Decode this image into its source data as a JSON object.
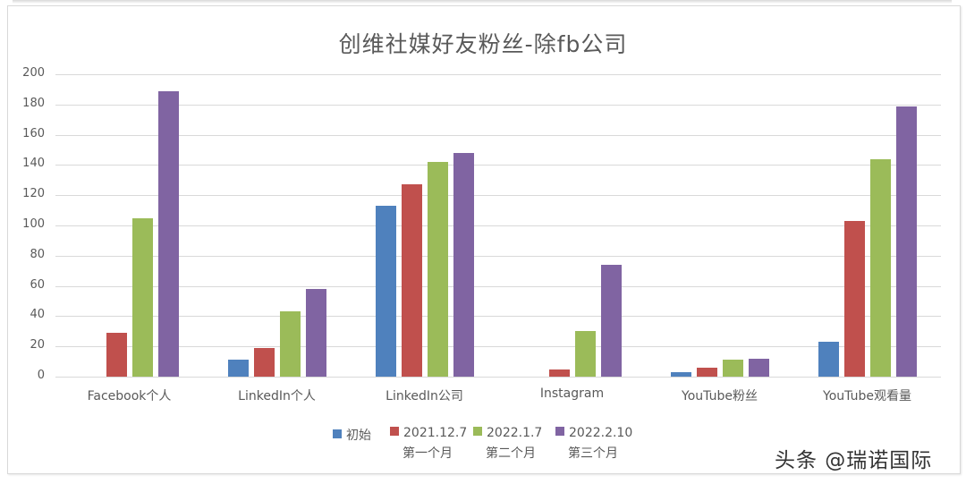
{
  "chart_data": {
    "type": "bar",
    "title": "创维社媒好友粉丝-除fb公司",
    "xlabel": "",
    "ylabel": "",
    "ylim": [
      0,
      200
    ],
    "yticks": [
      0,
      20,
      40,
      60,
      80,
      100,
      120,
      140,
      160,
      180,
      200
    ],
    "grid": true,
    "legend_position": "bottom",
    "categories": [
      "Facebook个人",
      "LinkedIn个人",
      "LinkedIn公司",
      "Instagram",
      "YouTube粉丝",
      "YouTube观看量"
    ],
    "series": [
      {
        "name": "初始",
        "color": "#4f81bd",
        "values": [
          0,
          11,
          113,
          0,
          3,
          23
        ]
      },
      {
        "name": "2021.12.7 第一个月",
        "color": "#c0504d",
        "values": [
          29,
          19,
          127,
          5,
          6,
          103
        ]
      },
      {
        "name": "2022.1.7 第二个月",
        "color": "#9bbb59",
        "values": [
          105,
          43,
          142,
          30,
          11,
          144
        ]
      },
      {
        "name": "2022.2.10 第三个月",
        "color": "#8064a2",
        "values": [
          189,
          58,
          148,
          74,
          12,
          179
        ]
      }
    ]
  },
  "legend": {
    "items": [
      {
        "label": "初始",
        "sub": ""
      },
      {
        "label": "2021.12.7",
        "sub": "第一个月"
      },
      {
        "label": "2022.1.7",
        "sub": "第二个月"
      },
      {
        "label": "2022.2.10",
        "sub": "第三个月"
      }
    ]
  },
  "watermark": "头条 @瑞诺国际"
}
